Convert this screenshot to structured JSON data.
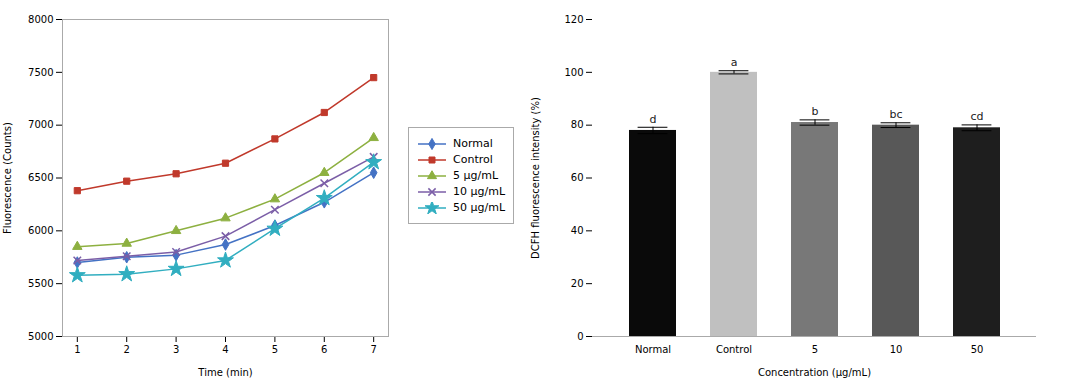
{
  "chart_data": [
    {
      "type": "line",
      "xlabel": "Time (min)",
      "ylabel": "Fluorescence (Counts)",
      "x": [
        1,
        2,
        3,
        4,
        5,
        6,
        7
      ],
      "series": [
        {
          "name": "Normal",
          "color": "#4472c4",
          "marker": "diamond",
          "values": [
            5700,
            5750,
            5770,
            5870,
            6050,
            6270,
            6550
          ]
        },
        {
          "name": "Control",
          "color": "#c0392b",
          "marker": "square",
          "values": [
            6380,
            6470,
            6540,
            6640,
            6870,
            7120,
            7450
          ]
        },
        {
          "name": "5 μg/mL",
          "color": "#8db040",
          "marker": "triangle",
          "values": [
            5850,
            5880,
            6000,
            6120,
            6300,
            6550,
            6880
          ]
        },
        {
          "name": "10 μg/mL",
          "color": "#7b5ea7",
          "marker": "x",
          "values": [
            5720,
            5760,
            5800,
            5950,
            6200,
            6450,
            6700
          ]
        },
        {
          "name": "50 μg/mL",
          "color": "#31aec0",
          "marker": "star",
          "values": [
            5580,
            5590,
            5640,
            5720,
            6020,
            6310,
            6650
          ]
        }
      ],
      "xlim": [
        0.7,
        7.3
      ],
      "xticks": [
        1,
        2,
        3,
        4,
        5,
        6,
        7
      ],
      "ylim": [
        5000,
        8000
      ],
      "yticks": [
        5000,
        5500,
        6000,
        6500,
        7000,
        7500,
        8000
      ],
      "legend": "right"
    },
    {
      "type": "bar",
      "xlabel": "Concentration (μg/mL)",
      "ylabel": "DCFH fluorescence intensity (%)",
      "categories": [
        "Normal",
        "Control",
        "5",
        "10",
        "50"
      ],
      "values": [
        78,
        100,
        81,
        80,
        79
      ],
      "errors": [
        1.2,
        0.6,
        1.0,
        0.9,
        1.1
      ],
      "letters": [
        "d",
        "a",
        "b",
        "bc",
        "cd"
      ],
      "colors": [
        "#0a0a0a",
        "#c0c0c0",
        "#787878",
        "#585858",
        "#1e1e1e"
      ],
      "ylim": [
        0,
        120
      ],
      "yticks": [
        0,
        20,
        40,
        60,
        80,
        100,
        120
      ]
    }
  ]
}
